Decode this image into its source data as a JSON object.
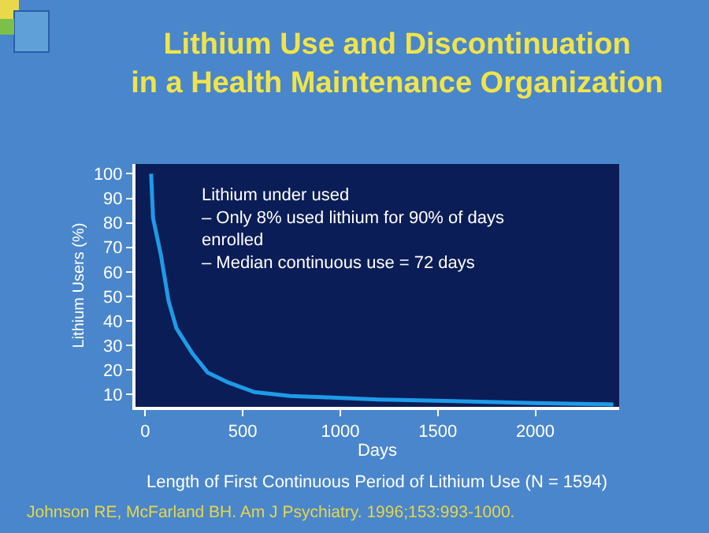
{
  "chart_data": {
    "type": "line",
    "title": "Lithium Use and Discontinuation\nin a Health Maintenance Organization",
    "xlabel": "Days",
    "ylabel": "Lithium Users (%)",
    "x": [
      30,
      40,
      80,
      120,
      160,
      240,
      320,
      424,
      560,
      744,
      960,
      1200,
      1500,
      2000,
      2400
    ],
    "series": [
      {
        "color": "#1e9be8",
        "values": [
          100,
          82,
          67,
          48,
          37,
          27,
          19,
          15,
          11,
          9.4,
          8.8,
          8,
          7.5,
          6.5,
          6
        ]
      }
    ],
    "xlim": [
      -50,
      2430
    ],
    "xticks": [
      0,
      500,
      1000,
      1500,
      2000
    ],
    "ylim": [
      5,
      104
    ],
    "yticks": [
      10,
      20,
      30,
      40,
      50,
      60,
      70,
      80,
      90,
      100
    ],
    "legend": false,
    "marker": "none",
    "line_style": "solid",
    "annotations": [
      "Lithium under used\n– Only 8% used lithium for 90% of days\nenrolled\n– Median continuous use = 72 days",
      "Length of First Continuous Period of Lithium Use (N = 1594)",
      "Johnson RE, McFarland BH. Am J Psychiatry. 1996;153:993-1000."
    ]
  }
}
